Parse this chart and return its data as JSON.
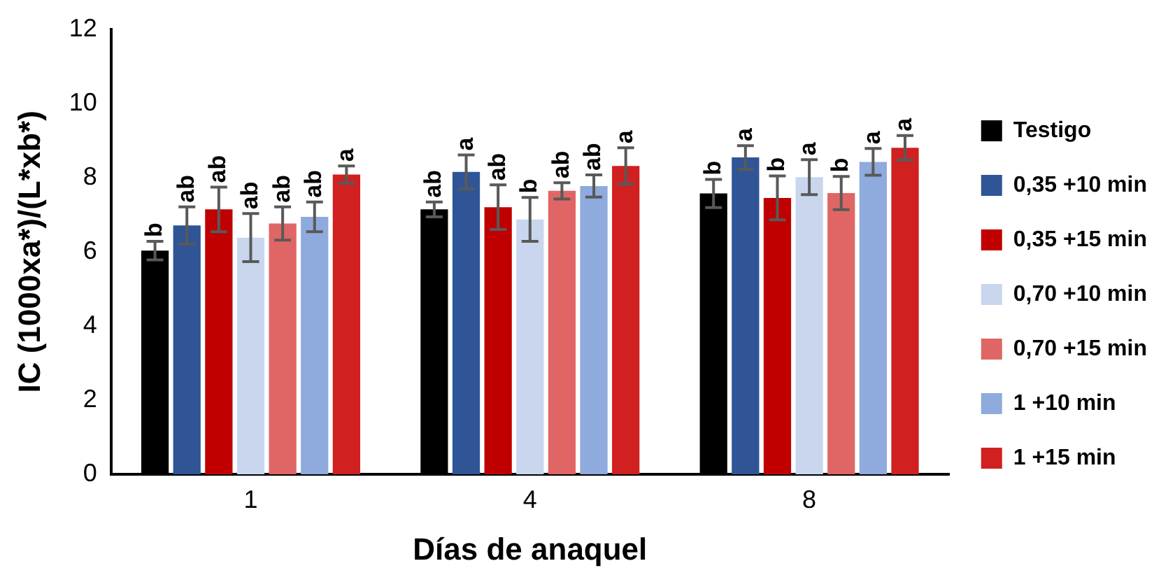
{
  "chart_data": {
    "type": "bar",
    "xlabel": "Días de anaquel",
    "ylabel": "IC (1000xa*)/(L*xb*)",
    "categories": [
      "1",
      "4",
      "8"
    ],
    "ylim": [
      0,
      12
    ],
    "yticks": [
      0,
      2,
      4,
      6,
      8,
      10,
      12
    ],
    "grid": false,
    "legend": "right",
    "series": [
      {
        "name": "Testigo",
        "color": "#000000",
        "values": [
          6.03,
          7.14,
          7.57
        ],
        "errors": [
          0.25,
          0.2,
          0.38
        ],
        "value_labels": [
          "b",
          "ab",
          "b"
        ]
      },
      {
        "name": "0,35 +10 min",
        "color": "#2f5597",
        "values": [
          6.71,
          8.15,
          8.54
        ],
        "errors": [
          0.5,
          0.46,
          0.32
        ],
        "value_labels": [
          "ab",
          "a",
          "a"
        ]
      },
      {
        "name": "0,35 +15 min",
        "color": "#c00000",
        "values": [
          7.14,
          7.2,
          7.45
        ],
        "errors": [
          0.6,
          0.6,
          0.59
        ],
        "value_labels": [
          "ab",
          "ab",
          "b"
        ]
      },
      {
        "name": "0,70 +10 min",
        "color": "#c9d6ee",
        "values": [
          6.38,
          6.87,
          8.01
        ],
        "errors": [
          0.65,
          0.59,
          0.47
        ],
        "value_labels": [
          "ab",
          "b",
          "a"
        ]
      },
      {
        "name": "0,70 +15 min",
        "color": "#e06666",
        "values": [
          6.76,
          7.64,
          7.58
        ],
        "errors": [
          0.45,
          0.22,
          0.45
        ],
        "value_labels": [
          "ab",
          "ab",
          "b"
        ]
      },
      {
        "name": "1 +10 min",
        "color": "#8faadc",
        "values": [
          6.94,
          7.77,
          8.42
        ],
        "errors": [
          0.4,
          0.3,
          0.36
        ],
        "value_labels": [
          "ab",
          "ab",
          "a"
        ]
      },
      {
        "name": "1 +15 min",
        "color": "#d02020",
        "values": [
          8.08,
          8.31,
          8.8
        ],
        "errors": [
          0.23,
          0.49,
          0.33
        ],
        "value_labels": [
          "a",
          "a",
          "a"
        ]
      }
    ]
  }
}
